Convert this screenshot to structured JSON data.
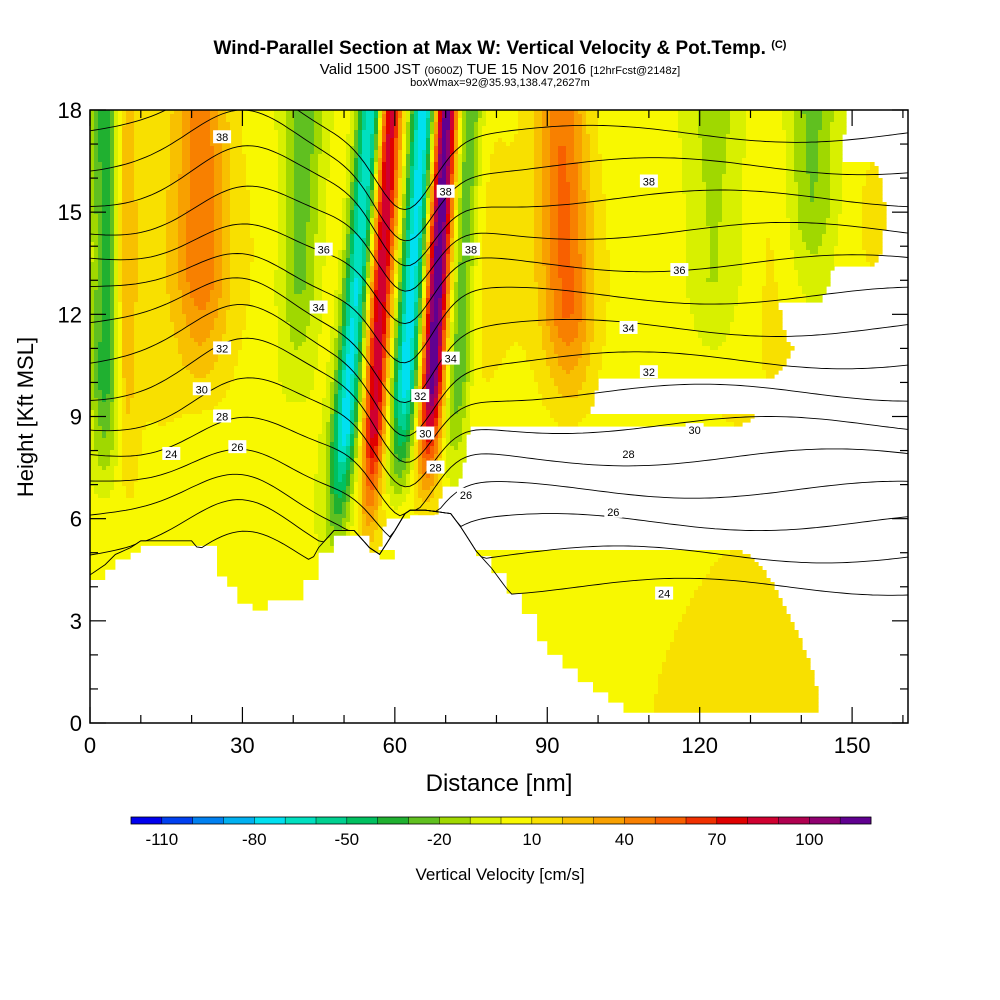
{
  "header": {
    "title": "Wind-Parallel Section at Max W: Vertical Velocity & Pot.Temp.",
    "copyright": "(C)",
    "valid_prefix": "Valid 1500 JST",
    "valid_utc": "(0600Z)",
    "valid_date": "TUE 15 Nov 2016",
    "forecast_info": "[12hrFcst@2148z]",
    "box_info": "boxWmax=92@35.93,138.47,2627m"
  },
  "chart_data": {
    "type": "heatmap",
    "title": "Wind-Parallel Section at Max W: Vertical Velocity & Pot.Temp.",
    "xlabel": "Distance [nm]",
    "ylabel": "Height [Kft MSL]",
    "xlim": [
      0,
      161
    ],
    "ylim": [
      0,
      18
    ],
    "x_ticks": [
      0,
      30,
      60,
      90,
      120,
      150
    ],
    "y_ticks": [
      0,
      3,
      6,
      9,
      12,
      15,
      18
    ],
    "grid": false,
    "colorbar": {
      "label": "Vertical Velocity [cm/s]",
      "tick_labels": [
        "-110",
        "-80",
        "-50",
        "-20",
        "10",
        "40",
        "70",
        "100"
      ],
      "tick_values": [
        -110,
        -80,
        -50,
        -20,
        10,
        40,
        70,
        100
      ],
      "min": -120,
      "max": 120,
      "step": 10,
      "colors": [
        "#0000ee",
        "#0040f0",
        "#0080f0",
        "#00b0f0",
        "#00e0f0",
        "#00e0c0",
        "#00d090",
        "#00c060",
        "#20b030",
        "#60c020",
        "#a0d800",
        "#d8f000",
        "#f8f800",
        "#f8e000",
        "#f8c000",
        "#f8a000",
        "#f88000",
        "#f86000",
        "#f03000",
        "#e00000",
        "#d00030",
        "#b00050",
        "#900070",
        "#600090"
      ]
    },
    "velocity_features": [
      {
        "x": 52,
        "z_low": 4.5,
        "z_high": 18,
        "tilt": 0.55,
        "w_at_top": -80,
        "width": 2.5
      },
      {
        "x": 57,
        "z_low": 4.5,
        "z_high": 18,
        "tilt": 0.35,
        "w_at_top": 80,
        "width": 2.2
      },
      {
        "x": 63,
        "z_low": 6,
        "z_high": 18,
        "tilt": 0.45,
        "w_at_top": -90,
        "width": 2.6
      },
      {
        "x": 68,
        "z_low": 6,
        "z_high": 18,
        "tilt": 0.35,
        "w_at_top": 110,
        "width": 2.2
      },
      {
        "x": 73,
        "z_low": 6,
        "z_high": 18,
        "tilt": 0.3,
        "w_at_top": -40,
        "width": 2.5
      },
      {
        "x": 3,
        "z_low": 6,
        "z_high": 18,
        "tilt": 0,
        "w_at_top": -45,
        "width": 3
      },
      {
        "x": 7,
        "z_low": 6,
        "z_high": 18,
        "tilt": 0,
        "w_at_top": 20,
        "width": 2
      },
      {
        "x": 22,
        "z_low": 9,
        "z_high": 18,
        "tilt": 0,
        "w_at_top": 35,
        "width": 5
      },
      {
        "x": 41,
        "z_low": 9,
        "z_high": 18,
        "tilt": 0.2,
        "w_at_top": -30,
        "width": 4
      },
      {
        "x": 94,
        "z_low": 8,
        "z_high": 18,
        "tilt": -0.2,
        "w_at_top": 45,
        "width": 5
      },
      {
        "x": 123,
        "z_low": 9,
        "z_high": 18,
        "tilt": 0,
        "w_at_top": -25,
        "width": 7
      },
      {
        "x": 142,
        "z_low": 11,
        "z_high": 18,
        "tilt": 0,
        "w_at_top": -30,
        "width": 5
      },
      {
        "x": 154,
        "z_low": 11,
        "z_high": 18,
        "tilt": 0,
        "w_at_top": 5,
        "width": 4
      }
    ],
    "terrain": {
      "x": [
        0,
        3,
        5,
        8,
        10,
        20,
        25,
        27,
        29,
        32,
        35,
        42,
        45,
        48,
        52,
        55,
        57,
        60,
        62,
        63,
        66,
        71,
        73,
        76,
        79,
        82,
        85,
        88,
        90,
        93,
        96,
        99,
        102,
        105,
        161
      ],
      "z": [
        4.2,
        4.5,
        4.8,
        5.0,
        5.2,
        5.2,
        4.3,
        4.0,
        3.5,
        3.3,
        3.6,
        4.2,
        5.0,
        5.5,
        5.5,
        5.0,
        4.8,
        5.5,
        6.0,
        6.1,
        6.1,
        6.0,
        5.6,
        4.9,
        4.4,
        3.8,
        3.2,
        2.4,
        2.0,
        1.6,
        1.2,
        0.9,
        0.6,
        0.3,
        0.3
      ]
    },
    "theta_contours": {
      "levels": [
        24,
        25,
        26,
        27,
        28,
        29,
        30,
        31,
        32,
        33,
        34,
        35,
        36,
        37,
        38
      ],
      "labeled_levels": [
        "24",
        "26",
        "28",
        "30",
        "32",
        "34",
        "36",
        "38"
      ],
      "labels": [
        {
          "text": "38",
          "x": 26,
          "z": 17.2
        },
        {
          "text": "38",
          "x": 70,
          "z": 15.6
        },
        {
          "text": "38",
          "x": 110,
          "z": 15.9
        },
        {
          "text": "36",
          "x": 46,
          "z": 13.9
        },
        {
          "text": "38",
          "x": 75,
          "z": 13.9
        },
        {
          "text": "36",
          "x": 116,
          "z": 13.3
        },
        {
          "text": "34",
          "x": 45,
          "z": 12.2
        },
        {
          "text": "34",
          "x": 71,
          "z": 10.7
        },
        {
          "text": "34",
          "x": 106,
          "z": 11.6
        },
        {
          "text": "32",
          "x": 26,
          "z": 11.0
        },
        {
          "text": "32",
          "x": 65,
          "z": 9.6
        },
        {
          "text": "32",
          "x": 110,
          "z": 10.3
        },
        {
          "text": "30",
          "x": 22,
          "z": 9.8
        },
        {
          "text": "30",
          "x": 66,
          "z": 8.5
        },
        {
          "text": "30",
          "x": 119,
          "z": 8.6
        },
        {
          "text": "28",
          "x": 26,
          "z": 9.0
        },
        {
          "text": "28",
          "x": 68,
          "z": 7.5
        },
        {
          "text": "28",
          "x": 106,
          "z": 7.9
        },
        {
          "text": "26",
          "x": 29,
          "z": 8.1
        },
        {
          "text": "26",
          "x": 74,
          "z": 6.7
        },
        {
          "text": "26",
          "x": 103,
          "z": 6.2
        },
        {
          "text": "24",
          "x": 16,
          "z": 7.9
        },
        {
          "text": "24",
          "x": 113,
          "z": 3.8
        }
      ]
    }
  }
}
